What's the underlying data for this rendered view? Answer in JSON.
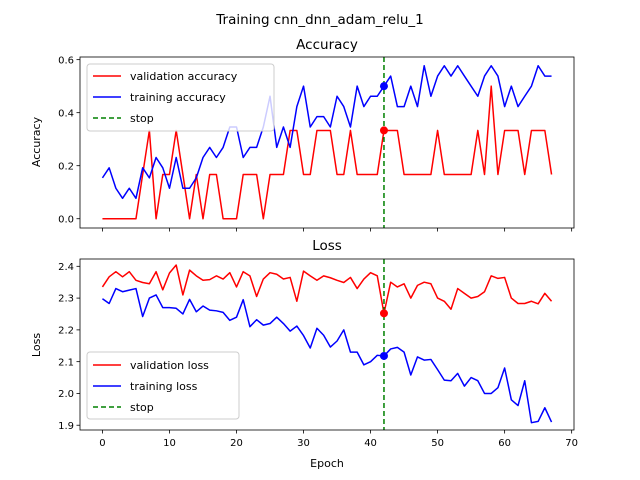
{
  "figure": {
    "title": "Training cnn_dnn_adam_relu_1"
  },
  "chart_data": [
    {
      "type": "line",
      "title": "Accuracy",
      "xlabel": "",
      "ylabel": "Accuracy",
      "xlim": [
        -3.35,
        70.35
      ],
      "ylim": [
        -0.035,
        0.61
      ],
      "xticks": [
        0,
        10,
        20,
        30,
        40,
        50,
        60,
        70
      ],
      "yticks": [
        0.0,
        0.2,
        0.4,
        0.6
      ],
      "ytick_labels": [
        "0.0",
        "0.2",
        "0.4",
        "0.6"
      ],
      "show_xtick_labels": false,
      "legend": "top-left",
      "stop_epoch": 42,
      "x": [
        0,
        1,
        2,
        3,
        4,
        5,
        6,
        7,
        8,
        9,
        10,
        11,
        12,
        13,
        14,
        15,
        16,
        17,
        18,
        19,
        20,
        21,
        22,
        23,
        24,
        25,
        26,
        27,
        28,
        29,
        30,
        31,
        32,
        33,
        34,
        35,
        36,
        37,
        38,
        39,
        40,
        41,
        42,
        43,
        44,
        45,
        46,
        47,
        48,
        49,
        50,
        51,
        52,
        53,
        54,
        55,
        56,
        57,
        58,
        59,
        60,
        61,
        62,
        63,
        64,
        65,
        66,
        67
      ],
      "series": [
        {
          "name": "validation accuracy",
          "color": "#ff0000",
          "style": "solid",
          "values": [
            0,
            0,
            0,
            0,
            0,
            0,
            0.167,
            0.333,
            0,
            0.167,
            0.167,
            0.333,
            0.167,
            0,
            0.167,
            0,
            0.167,
            0.167,
            0,
            0,
            0,
            0.167,
            0.167,
            0.167,
            0,
            0.167,
            0.167,
            0.167,
            0.333,
            0.333,
            0.167,
            0.167,
            0.333,
            0.333,
            0.333,
            0.167,
            0.167,
            0.333,
            0.167,
            0.167,
            0.167,
            0.167,
            0.333,
            0.333,
            0.333,
            0.167,
            0.167,
            0.167,
            0.167,
            0.167,
            0.333,
            0.167,
            0.167,
            0.167,
            0.167,
            0.167,
            0.333,
            0.167,
            0.5,
            0.167,
            0.333,
            0.333,
            0.333,
            0.167,
            0.333,
            0.333,
            0.333,
            0.167
          ]
        },
        {
          "name": "training accuracy",
          "color": "#0000ff",
          "style": "solid",
          "values": [
            0.154,
            0.192,
            0.115,
            0.077,
            0.115,
            0.077,
            0.192,
            0.154,
            0.231,
            0.192,
            0.115,
            0.231,
            0.115,
            0.115,
            0.154,
            0.231,
            0.269,
            0.231,
            0.269,
            0.346,
            0.346,
            0.231,
            0.269,
            0.269,
            0.346,
            0.462,
            0.269,
            0.346,
            0.269,
            0.423,
            0.5,
            0.346,
            0.385,
            0.385,
            0.346,
            0.462,
            0.423,
            0.346,
            0.5,
            0.423,
            0.462,
            0.462,
            0.5,
            0.538,
            0.423,
            0.423,
            0.5,
            0.423,
            0.577,
            0.462,
            0.538,
            0.577,
            0.538,
            0.577,
            0.538,
            0.5,
            0.462,
            0.538,
            0.577,
            0.538,
            0.423,
            0.5,
            0.423,
            0.462,
            0.5,
            0.577,
            0.538,
            0.538
          ]
        },
        {
          "name": "stop",
          "color": "#008000",
          "style": "dashed"
        }
      ],
      "markers": [
        {
          "series": "validation accuracy",
          "x": 42,
          "y": 0.333,
          "color": "#ff0000"
        },
        {
          "series": "training accuracy",
          "x": 42,
          "y": 0.5,
          "color": "#0000ff"
        }
      ]
    },
    {
      "type": "line",
      "title": "Loss",
      "xlabel": "Epoch",
      "ylabel": "Loss",
      "xlim": [
        -3.35,
        70.35
      ],
      "ylim": [
        1.885,
        2.423
      ],
      "xticks": [
        0,
        10,
        20,
        30,
        40,
        50,
        60,
        70
      ],
      "yticks": [
        1.9,
        2.0,
        2.1,
        2.2,
        2.3,
        2.4
      ],
      "ytick_labels": [
        "1.9",
        "2.0",
        "2.1",
        "2.2",
        "2.3",
        "2.4"
      ],
      "show_xtick_labels": true,
      "legend": "bottom-left",
      "stop_epoch": 42,
      "x": [
        0,
        1,
        2,
        3,
        4,
        5,
        6,
        7,
        8,
        9,
        10,
        11,
        12,
        13,
        14,
        15,
        16,
        17,
        18,
        19,
        20,
        21,
        22,
        23,
        24,
        25,
        26,
        27,
        28,
        29,
        30,
        31,
        32,
        33,
        34,
        35,
        36,
        37,
        38,
        39,
        40,
        41,
        42,
        43,
        44,
        45,
        46,
        47,
        48,
        49,
        50,
        51,
        52,
        53,
        54,
        55,
        56,
        57,
        58,
        59,
        60,
        61,
        62,
        63,
        64,
        65,
        66,
        67
      ],
      "series": [
        {
          "name": "validation loss",
          "color": "#ff0000",
          "style": "solid",
          "values": [
            2.335,
            2.367,
            2.383,
            2.367,
            2.383,
            2.356,
            2.349,
            2.345,
            2.383,
            2.326,
            2.379,
            2.404,
            2.31,
            2.388,
            2.37,
            2.356,
            2.358,
            2.37,
            2.36,
            2.38,
            2.335,
            2.383,
            2.37,
            2.305,
            2.36,
            2.38,
            2.375,
            2.36,
            2.365,
            2.29,
            2.385,
            2.37,
            2.356,
            2.37,
            2.364,
            2.356,
            2.349,
            2.365,
            2.33,
            2.36,
            2.38,
            2.37,
            2.252,
            2.35,
            2.335,
            2.345,
            2.3,
            2.34,
            2.35,
            2.345,
            2.3,
            2.29,
            2.265,
            2.33,
            2.315,
            2.3,
            2.305,
            2.32,
            2.37,
            2.362,
            2.365,
            2.3,
            2.283,
            2.283,
            2.29,
            2.282,
            2.315,
            2.29
          ]
        },
        {
          "name": "training loss",
          "color": "#0000ff",
          "style": "solid",
          "values": [
            2.298,
            2.283,
            2.33,
            2.32,
            2.325,
            2.33,
            2.242,
            2.3,
            2.31,
            2.27,
            2.27,
            2.268,
            2.25,
            2.296,
            2.257,
            2.275,
            2.262,
            2.26,
            2.255,
            2.23,
            2.24,
            2.295,
            2.21,
            2.232,
            2.215,
            2.22,
            2.24,
            2.22,
            2.196,
            2.212,
            2.182,
            2.143,
            2.205,
            2.183,
            2.146,
            2.165,
            2.2,
            2.13,
            2.13,
            2.09,
            2.1,
            2.12,
            2.118,
            2.14,
            2.145,
            2.13,
            2.058,
            2.115,
            2.105,
            2.107,
            2.075,
            2.042,
            2.04,
            2.063,
            2.023,
            2.05,
            2.04,
            2.0,
            2.0,
            2.018,
            2.08,
            1.98,
            1.962,
            2.04,
            1.908,
            1.912,
            1.955,
            1.91
          ]
        },
        {
          "name": "stop",
          "color": "#008000",
          "style": "dashed"
        }
      ],
      "markers": [
        {
          "series": "validation loss",
          "x": 42,
          "y": 2.252,
          "color": "#ff0000"
        },
        {
          "series": "training loss",
          "x": 42,
          "y": 2.118,
          "color": "#0000ff"
        }
      ]
    }
  ]
}
